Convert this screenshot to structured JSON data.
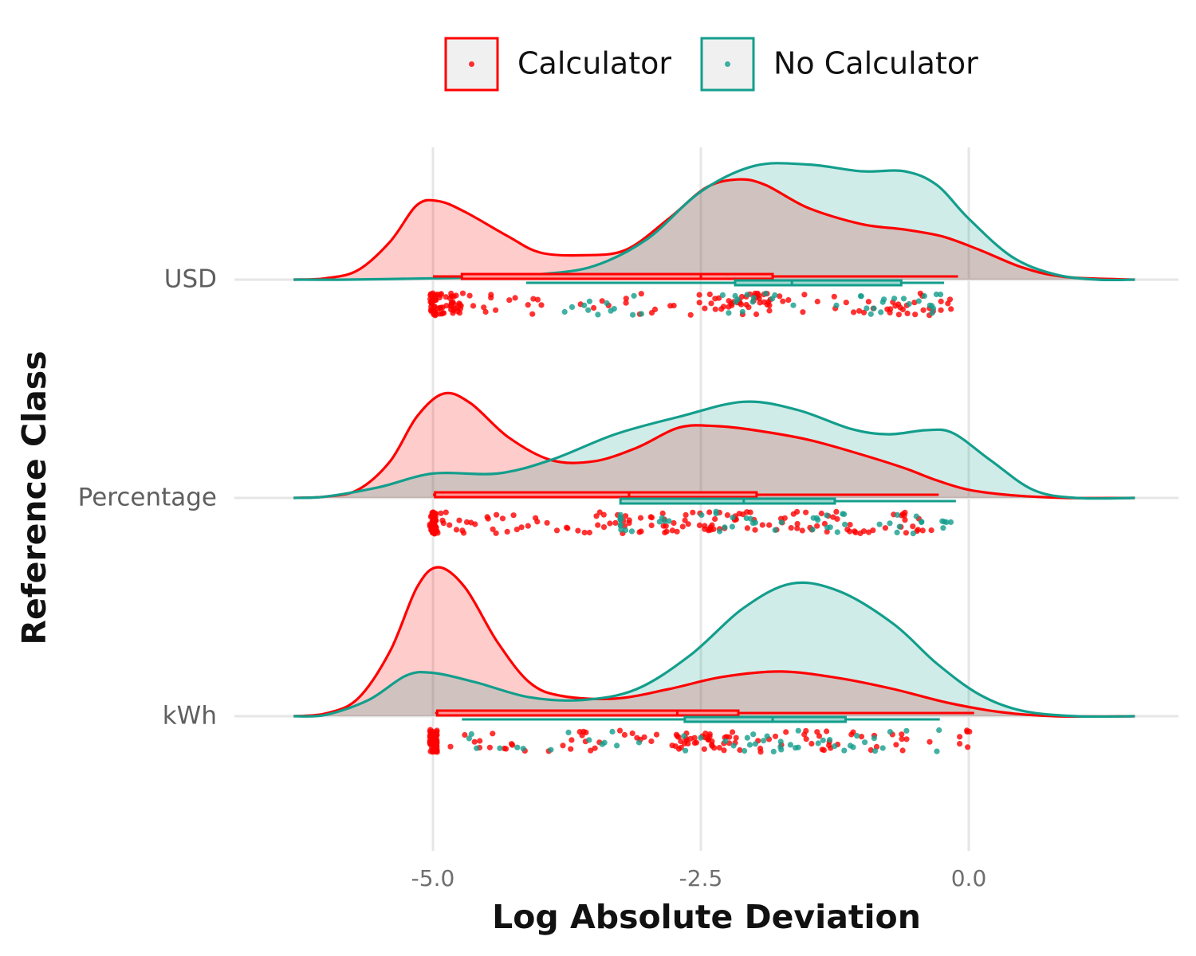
{
  "chart_data": {
    "type": "raincloud",
    "xlabel": "Log Absolute Deviation",
    "ylabel": "Reference Class",
    "xlim": [
      -6.3,
      1.55
    ],
    "x_ticks": [
      -5.0,
      -2.5,
      0.0
    ],
    "x_tick_labels": [
      "-5.0",
      "-2.5",
      "0.0"
    ],
    "categories": [
      "USD",
      "Percentage",
      "kWh"
    ],
    "grid": true,
    "legend_position": "top",
    "series": [
      {
        "name": "Calculator",
        "color": "#ff0000",
        "line_color": "#cc2222",
        "fill_color": "#ff0000",
        "fill_opacity": 0.2,
        "density": {
          "USD": [
            [
              -6.3,
              0.0
            ],
            [
              -6.0,
              0.01
            ],
            [
              -5.7,
              0.07
            ],
            [
              -5.4,
              0.28
            ],
            [
              -5.15,
              0.55
            ],
            [
              -4.95,
              0.58
            ],
            [
              -4.7,
              0.5
            ],
            [
              -4.3,
              0.32
            ],
            [
              -4.0,
              0.2
            ],
            [
              -3.6,
              0.18
            ],
            [
              -3.2,
              0.22
            ],
            [
              -2.8,
              0.45
            ],
            [
              -2.45,
              0.68
            ],
            [
              -2.15,
              0.74
            ],
            [
              -1.9,
              0.7
            ],
            [
              -1.5,
              0.53
            ],
            [
              -1.0,
              0.41
            ],
            [
              -0.6,
              0.37
            ],
            [
              -0.25,
              0.32
            ],
            [
              0.1,
              0.22
            ],
            [
              0.5,
              0.09
            ],
            [
              0.9,
              0.02
            ],
            [
              1.55,
              0.0
            ]
          ],
          "Percentage": [
            [
              -6.3,
              0.0
            ],
            [
              -6.0,
              0.01
            ],
            [
              -5.7,
              0.06
            ],
            [
              -5.4,
              0.27
            ],
            [
              -5.15,
              0.6
            ],
            [
              -4.9,
              0.77
            ],
            [
              -4.65,
              0.7
            ],
            [
              -4.3,
              0.45
            ],
            [
              -3.9,
              0.28
            ],
            [
              -3.5,
              0.27
            ],
            [
              -3.1,
              0.37
            ],
            [
              -2.7,
              0.52
            ],
            [
              -2.35,
              0.53
            ],
            [
              -2.0,
              0.5
            ],
            [
              -1.5,
              0.43
            ],
            [
              -1.0,
              0.32
            ],
            [
              -0.6,
              0.22
            ],
            [
              -0.3,
              0.13
            ],
            [
              0.0,
              0.06
            ],
            [
              0.4,
              0.02
            ],
            [
              0.9,
              0.0
            ],
            [
              1.55,
              0.0
            ]
          ],
          "kWh": [
            [
              -6.3,
              0.0
            ],
            [
              -6.0,
              0.02
            ],
            [
              -5.7,
              0.13
            ],
            [
              -5.4,
              0.48
            ],
            [
              -5.15,
              0.95
            ],
            [
              -4.95,
              1.1
            ],
            [
              -4.7,
              0.95
            ],
            [
              -4.4,
              0.55
            ],
            [
              -4.1,
              0.25
            ],
            [
              -3.8,
              0.15
            ],
            [
              -3.3,
              0.13
            ],
            [
              -2.8,
              0.2
            ],
            [
              -2.3,
              0.29
            ],
            [
              -1.75,
              0.33
            ],
            [
              -1.2,
              0.28
            ],
            [
              -0.7,
              0.2
            ],
            [
              -0.2,
              0.1
            ],
            [
              0.3,
              0.03
            ],
            [
              0.8,
              0.0
            ],
            [
              1.55,
              0.0
            ]
          ]
        },
        "boxplot": {
          "USD": {
            "whisker_low": -5.0,
            "q1": -4.73,
            "median": -2.5,
            "q3": -1.83,
            "whisker_high": -0.1
          },
          "Percentage": {
            "whisker_low": -5.0,
            "q1": -4.98,
            "median": -3.17,
            "q3": -1.98,
            "whisker_high": -0.28
          },
          "kWh": {
            "whisker_low": -4.98,
            "q1": -4.96,
            "median": -2.72,
            "q3": -2.15,
            "whisker_high": 0.05
          }
        },
        "points_n": {
          "USD": 175,
          "Percentage": 235,
          "kWh": 185
        }
      },
      {
        "name": "No Calculator",
        "color": "#139e8c",
        "line_color": "#139e8c",
        "fill_color": "#139e8c",
        "fill_opacity": 0.2,
        "density": {
          "USD": [
            [
              -6.3,
              0.0
            ],
            [
              -5.8,
              0.0
            ],
            [
              -5.0,
              0.01
            ],
            [
              -4.5,
              0.02
            ],
            [
              -4.0,
              0.04
            ],
            [
              -3.5,
              0.1
            ],
            [
              -3.0,
              0.3
            ],
            [
              -2.5,
              0.65
            ],
            [
              -2.0,
              0.84
            ],
            [
              -1.5,
              0.85
            ],
            [
              -1.0,
              0.8
            ],
            [
              -0.6,
              0.8
            ],
            [
              -0.3,
              0.7
            ],
            [
              0.0,
              0.45
            ],
            [
              0.4,
              0.17
            ],
            [
              0.8,
              0.04
            ],
            [
              1.2,
              0.0
            ],
            [
              1.55,
              0.0
            ]
          ],
          "Percentage": [
            [
              -6.3,
              0.0
            ],
            [
              -6.0,
              0.01
            ],
            [
              -5.5,
              0.08
            ],
            [
              -5.0,
              0.18
            ],
            [
              -4.4,
              0.18
            ],
            [
              -3.9,
              0.28
            ],
            [
              -3.3,
              0.47
            ],
            [
              -2.7,
              0.6
            ],
            [
              -2.1,
              0.71
            ],
            [
              -1.6,
              0.65
            ],
            [
              -1.1,
              0.51
            ],
            [
              -0.75,
              0.47
            ],
            [
              -0.4,
              0.5
            ],
            [
              -0.15,
              0.48
            ],
            [
              0.2,
              0.28
            ],
            [
              0.6,
              0.06
            ],
            [
              1.0,
              0.0
            ],
            [
              1.55,
              0.0
            ]
          ],
          "kWh": [
            [
              -6.3,
              0.0
            ],
            [
              -6.0,
              0.01
            ],
            [
              -5.6,
              0.12
            ],
            [
              -5.25,
              0.3
            ],
            [
              -5.0,
              0.32
            ],
            [
              -4.6,
              0.25
            ],
            [
              -4.1,
              0.14
            ],
            [
              -3.6,
              0.12
            ],
            [
              -3.1,
              0.2
            ],
            [
              -2.6,
              0.45
            ],
            [
              -2.1,
              0.8
            ],
            [
              -1.65,
              0.98
            ],
            [
              -1.2,
              0.92
            ],
            [
              -0.7,
              0.68
            ],
            [
              -0.3,
              0.39
            ],
            [
              0.1,
              0.16
            ],
            [
              0.5,
              0.04
            ],
            [
              1.0,
              0.0
            ],
            [
              1.55,
              0.0
            ]
          ]
        },
        "boxplot": {
          "USD": {
            "whisker_low": -4.13,
            "q1": -2.18,
            "median": -1.65,
            "q3": -0.63,
            "whisker_high": -0.23
          },
          "Percentage": {
            "whisker_low": -3.25,
            "q1": -3.25,
            "median": -2.1,
            "q3": -1.25,
            "whisker_high": -0.12
          },
          "kWh": {
            "whisker_low": -4.73,
            "q1": -2.65,
            "median": -1.83,
            "q3": -1.15,
            "whisker_high": -0.27
          }
        },
        "points_n": {
          "USD": 45,
          "Percentage": 55,
          "kWh": 50
        }
      }
    ]
  }
}
